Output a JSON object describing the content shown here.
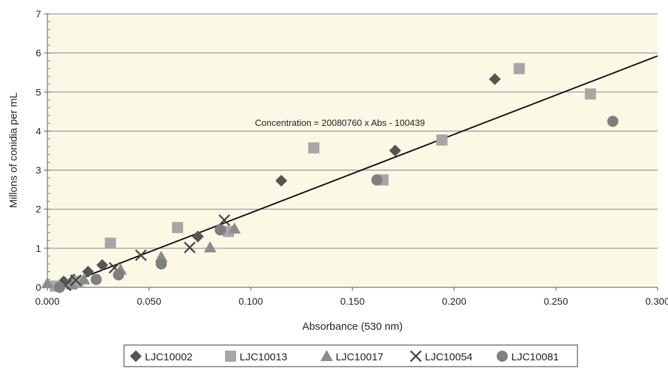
{
  "chart_data": {
    "type": "scatter",
    "title": "",
    "xlabel": "Absorbance (530 nm)",
    "ylabel": "Millons of conidia per mL",
    "xlim": [
      0,
      0.3
    ],
    "ylim": [
      0,
      7
    ],
    "x_tick_labels": [
      "0.000",
      "0.050",
      "0.100",
      "0.150",
      "0.200",
      "0.250",
      "0.300"
    ],
    "y_tick_labels": [
      "0",
      "1",
      "2",
      "3",
      "4",
      "5",
      "6",
      "7"
    ],
    "grid": "horizontal",
    "plot_background": "#fbf8e6",
    "legend_position": "bottom",
    "annotation": "Concentration = 20080760 x Abs - 100439",
    "fit_line": {
      "slope": 20.08076,
      "intercept": -0.100439,
      "x_start": 0.005,
      "x_end": 0.3
    },
    "series": [
      {
        "name": "LJC10002",
        "marker": "diamond",
        "color": "#555555",
        "x": [
          0.008,
          0.013,
          0.02,
          0.027,
          0.074,
          0.115,
          0.171,
          0.22
        ],
        "y": [
          0.15,
          0.2,
          0.4,
          0.57,
          1.3,
          2.73,
          3.5,
          5.33
        ]
      },
      {
        "name": "LJC10013",
        "marker": "square",
        "color": "#a6a6a6",
        "x": [
          0.004,
          0.015,
          0.031,
          0.064,
          0.089,
          0.131,
          0.165,
          0.194,
          0.232,
          0.267
        ],
        "y": [
          0.03,
          0.15,
          1.13,
          1.53,
          1.43,
          3.57,
          2.75,
          3.77,
          5.6,
          4.95
        ]
      },
      {
        "name": "LJC10017",
        "marker": "triangle",
        "color": "#8c8c8c",
        "x": [
          0.0,
          0.012,
          0.018,
          0.036,
          0.056,
          0.08,
          0.092
        ],
        "y": [
          0.1,
          0.07,
          0.2,
          0.45,
          0.78,
          1.02,
          1.5
        ]
      },
      {
        "name": "LJC10054",
        "marker": "x",
        "color": "#444444",
        "x": [
          0.009,
          0.014,
          0.033,
          0.046,
          0.07,
          0.087
        ],
        "y": [
          0.05,
          0.18,
          0.5,
          0.82,
          1.02,
          1.72
        ]
      },
      {
        "name": "LJC10081",
        "marker": "circle",
        "color": "#7f7f7f",
        "x": [
          0.006,
          0.024,
          0.035,
          0.056,
          0.085,
          0.162,
          0.278
        ],
        "y": [
          0.0,
          0.2,
          0.32,
          0.6,
          1.47,
          2.75,
          4.25
        ]
      }
    ]
  }
}
